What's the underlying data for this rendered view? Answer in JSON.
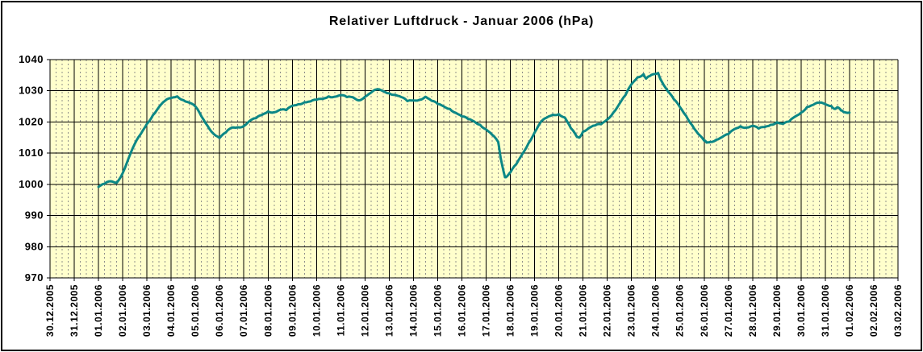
{
  "chart_data": {
    "type": "line",
    "title": "Relativer Luftdruck - Januar 2006 (hPa)",
    "xlabel": "",
    "ylabel": "",
    "ylim": [
      970,
      1040
    ],
    "yticks": [
      970,
      980,
      990,
      1000,
      1010,
      1020,
      1030,
      1040
    ],
    "grid": "on",
    "legend": "none",
    "minor_x_divisions_per_day": 4,
    "categories": [
      "30.12.2005",
      "31.12.2005",
      "01.01.2006",
      "02.01.2006",
      "03.01.2006",
      "04.01.2006",
      "05.01.2006",
      "06.01.2006",
      "07.01.2006",
      "08.01.2006",
      "09.01.2006",
      "10.01.2006",
      "11.01.2006",
      "12.01.2006",
      "13.01.2006",
      "14.01.2006",
      "15.01.2006",
      "16.01.2006",
      "17.01.2006",
      "18.01.2006",
      "19.01.2006",
      "20.01.2006",
      "21.01.2006",
      "22.01.2006",
      "23.01.2006",
      "24.01.2006",
      "25.01.2006",
      "26.01.2006",
      "27.01.2006",
      "28.01.2006",
      "29.01.2006",
      "30.01.2006",
      "31.01.2006",
      "01.02.2006",
      "02.02.2006",
      "03.02.2006"
    ],
    "x_encoding": "points are [day offset from 30.12.2005 on the category axis, pressure hPa]",
    "colors": {
      "plot_bg": "#FFFFCC",
      "line": "#0C8786",
      "grid_major": "#000000",
      "grid_minor": "#90908A",
      "text": "#000000",
      "frame": "#000000"
    },
    "series": [
      {
        "name": "Relativer Luftdruck (hPa)",
        "points": [
          [
            2,
            999.2
          ],
          [
            2.25,
            1000.2
          ],
          [
            2.5,
            1001
          ],
          [
            2.75,
            1000.5
          ],
          [
            3,
            1003.6
          ],
          [
            3.25,
            1008.5
          ],
          [
            3.5,
            1013
          ],
          [
            3.75,
            1016.2
          ],
          [
            4,
            1019.4
          ],
          [
            4.25,
            1022.2
          ],
          [
            4.5,
            1024.8
          ],
          [
            4.75,
            1026.8
          ],
          [
            5,
            1027.7
          ],
          [
            5.25,
            1028.2
          ],
          [
            5.5,
            1027
          ],
          [
            5.75,
            1026.2
          ],
          [
            6,
            1025
          ],
          [
            6.25,
            1021.8
          ],
          [
            6.5,
            1018.8
          ],
          [
            6.75,
            1016.2
          ],
          [
            7,
            1014.9
          ],
          [
            7.25,
            1016.6
          ],
          [
            7.5,
            1018.2
          ],
          [
            7.75,
            1018.3
          ],
          [
            8,
            1018.7
          ],
          [
            8.25,
            1020.4
          ],
          [
            8.5,
            1021.2
          ],
          [
            8.75,
            1022.3
          ],
          [
            9,
            1023.4
          ],
          [
            9.25,
            1023.1
          ],
          [
            9.5,
            1023.9
          ],
          [
            9.75,
            1023.8
          ],
          [
            10,
            1025.2
          ],
          [
            10.25,
            1025.7
          ],
          [
            10.5,
            1026.3
          ],
          [
            10.75,
            1026.6
          ],
          [
            11,
            1027.1
          ],
          [
            11.25,
            1027.4
          ],
          [
            11.5,
            1028.2
          ],
          [
            11.75,
            1028.1
          ],
          [
            12,
            1028.6
          ],
          [
            12.25,
            1028
          ],
          [
            12.5,
            1027.9
          ],
          [
            12.75,
            1026.9
          ],
          [
            13,
            1028.1
          ],
          [
            13.25,
            1029.4
          ],
          [
            13.5,
            1030.5
          ],
          [
            13.75,
            1029.9
          ],
          [
            14,
            1029.2
          ],
          [
            14.25,
            1028.7
          ],
          [
            14.5,
            1028
          ],
          [
            14.75,
            1026.7
          ],
          [
            15,
            1026.9
          ],
          [
            15.25,
            1027.1
          ],
          [
            15.5,
            1028.1
          ],
          [
            15.75,
            1026.8
          ],
          [
            16,
            1025.8
          ],
          [
            16.25,
            1025
          ],
          [
            16.5,
            1024.2
          ],
          [
            16.75,
            1022.9
          ],
          [
            17,
            1021.8
          ],
          [
            17.25,
            1021
          ],
          [
            17.5,
            1020.2
          ],
          [
            17.75,
            1019.1
          ],
          [
            18,
            1017.6
          ],
          [
            18.25,
            1015.9
          ],
          [
            18.5,
            1013.6
          ],
          [
            18.6,
            1008.5
          ],
          [
            18.78,
            1002.3
          ],
          [
            18.9,
            1002.9
          ],
          [
            19,
            1003.8
          ],
          [
            19.25,
            1006.5
          ],
          [
            19.5,
            1009.8
          ],
          [
            19.75,
            1013.2
          ],
          [
            20,
            1016.6
          ],
          [
            20.25,
            1019.9
          ],
          [
            20.5,
            1021.4
          ],
          [
            20.75,
            1022.3
          ],
          [
            21,
            1022.5
          ],
          [
            21.25,
            1021.4
          ],
          [
            21.5,
            1018
          ],
          [
            21.75,
            1015.2
          ],
          [
            21.85,
            1015
          ],
          [
            22,
            1016.9
          ],
          [
            22.25,
            1018.1
          ],
          [
            22.5,
            1018.9
          ],
          [
            22.75,
            1019.3
          ],
          [
            23,
            1020.8
          ],
          [
            23.25,
            1023
          ],
          [
            23.5,
            1025.8
          ],
          [
            23.75,
            1028.6
          ],
          [
            24,
            1032.1
          ],
          [
            24.25,
            1034.3
          ],
          [
            24.5,
            1035.3
          ],
          [
            24.6,
            1033.9
          ],
          [
            24.75,
            1034.7
          ],
          [
            25,
            1035.4
          ],
          [
            25.1,
            1035.7
          ],
          [
            25.25,
            1033
          ],
          [
            25.5,
            1029.9
          ],
          [
            25.75,
            1027.3
          ],
          [
            26,
            1024.8
          ],
          [
            26.25,
            1022
          ],
          [
            26.5,
            1019
          ],
          [
            26.75,
            1016.2
          ],
          [
            27,
            1014
          ],
          [
            27.1,
            1013.4
          ],
          [
            27.25,
            1013.6
          ],
          [
            27.5,
            1014.3
          ],
          [
            27.75,
            1015.2
          ],
          [
            28,
            1016.1
          ],
          [
            28.25,
            1017.7
          ],
          [
            28.5,
            1018.6
          ],
          [
            28.75,
            1018.2
          ],
          [
            29,
            1018.8
          ],
          [
            29.25,
            1017.9
          ],
          [
            29.5,
            1018.4
          ],
          [
            29.75,
            1019.1
          ],
          [
            30,
            1019.9
          ],
          [
            30.25,
            1019.4
          ],
          [
            30.5,
            1020.1
          ],
          [
            30.75,
            1021.7
          ],
          [
            31,
            1023
          ],
          [
            31.25,
            1024.8
          ],
          [
            31.5,
            1025.5
          ],
          [
            31.75,
            1026.2
          ],
          [
            32,
            1025.7
          ],
          [
            32.25,
            1025.1
          ],
          [
            32.4,
            1024.2
          ],
          [
            32.5,
            1024.7
          ],
          [
            32.65,
            1023.7
          ],
          [
            32.75,
            1023.2
          ],
          [
            33,
            1023
          ]
        ]
      }
    ]
  }
}
